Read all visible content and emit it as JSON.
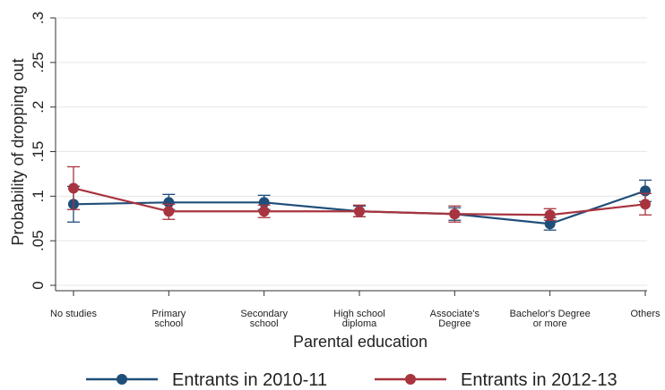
{
  "chart_data": {
    "type": "line",
    "title": "",
    "xlabel": "Parental education",
    "ylabel": "Probability of dropping out",
    "ylim": [
      0,
      0.3
    ],
    "yticks": [
      0,
      0.05,
      0.1,
      0.15,
      0.2,
      0.25,
      0.3
    ],
    "ytick_labels": [
      "0",
      ".05",
      ".1",
      ".15",
      ".2",
      ".25",
      ".3"
    ],
    "categories": [
      [
        "No studies"
      ],
      [
        "Primary",
        "school"
      ],
      [
        "Secondary",
        "school"
      ],
      [
        "High school",
        "diploma"
      ],
      [
        "Associate's",
        "Degree"
      ],
      [
        "Bachelor's Degree",
        "or more"
      ],
      [
        "Others"
      ]
    ],
    "grid": true,
    "legend_position": "bottom",
    "series": [
      {
        "name": "Entrants in 2010-11",
        "color": "#1f4e79",
        "values": [
          0.091,
          0.093,
          0.093,
          0.083,
          0.08,
          0.069,
          0.106
        ],
        "ci_low": [
          0.071,
          0.085,
          0.085,
          0.077,
          0.073,
          0.062,
          0.094
        ],
        "ci_high": [
          0.111,
          0.102,
          0.101,
          0.089,
          0.087,
          0.076,
          0.118
        ]
      },
      {
        "name": "Entrants in 2012-13",
        "color": "#a8343f",
        "values": [
          0.109,
          0.083,
          0.083,
          0.083,
          0.08,
          0.079,
          0.091
        ],
        "ci_low": [
          0.085,
          0.074,
          0.076,
          0.077,
          0.071,
          0.073,
          0.079
        ],
        "ci_high": [
          0.133,
          0.091,
          0.09,
          0.09,
          0.089,
          0.086,
          0.103
        ]
      }
    ]
  }
}
